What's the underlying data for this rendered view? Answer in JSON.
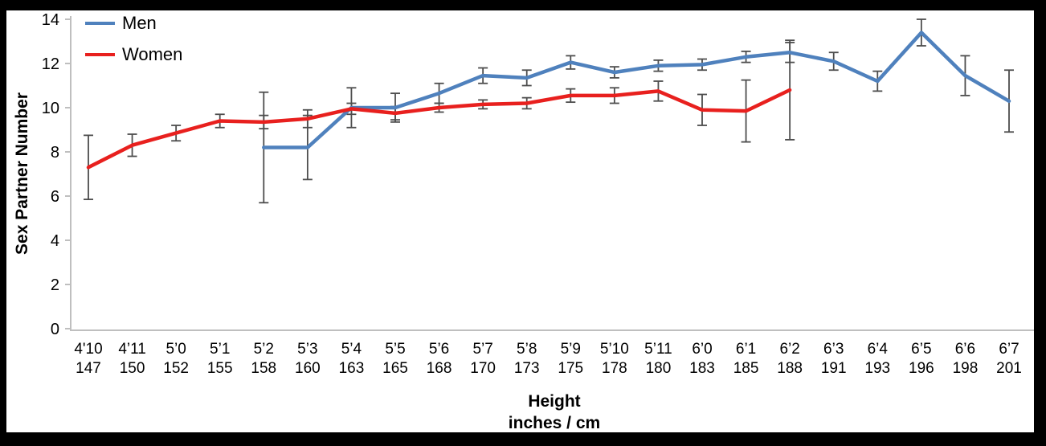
{
  "chart_data": {
    "type": "line",
    "title": "",
    "ylabel": "Sex Partner Number",
    "xlabel": "Height inches / cm",
    "xlabel_line1": "Height",
    "xlabel_line2": "inches / cm",
    "ylim": [
      0,
      14
    ],
    "y_ticks": [
      0,
      2,
      4,
      6,
      8,
      10,
      12,
      14
    ],
    "grid": false,
    "legend_position": "top-left",
    "axis_color": "#bfbfbf",
    "error_bar_color": "#4d4d4d",
    "categories_inches": [
      "4'10",
      "4’11",
      "5’0",
      "5’1",
      "5’2",
      "5’3",
      "5’4",
      "5’5",
      "5’6",
      "5’7",
      "5’8",
      "5’9",
      "5’10",
      "5’11",
      "6’0",
      "6’1",
      "6’2",
      "6’3",
      "6’4",
      "6’5",
      "6’6",
      "6’7"
    ],
    "categories_cm": [
      "147",
      "150",
      "152",
      "155",
      "158",
      "160",
      "163",
      "165",
      "168",
      "170",
      "173",
      "175",
      "178",
      "180",
      "183",
      "185",
      "188",
      "191",
      "193",
      "196",
      "198",
      "201"
    ],
    "series": [
      {
        "name": "Men",
        "color": "#4f81bd",
        "values": [
          null,
          null,
          null,
          null,
          8.2,
          8.2,
          10.0,
          10.0,
          10.65,
          11.45,
          11.35,
          12.05,
          11.6,
          11.9,
          11.95,
          12.3,
          12.5,
          12.1,
          11.2,
          13.4,
          11.45,
          10.3
        ],
        "errors": [
          null,
          null,
          null,
          null,
          2.5,
          1.45,
          0.9,
          0.65,
          0.45,
          0.35,
          0.35,
          0.3,
          0.25,
          0.25,
          0.25,
          0.25,
          0.45,
          0.4,
          0.45,
          0.6,
          0.9,
          1.4
        ]
      },
      {
        "name": "Women",
        "color": "#e8201e",
        "values": [
          7.3,
          8.3,
          8.85,
          9.4,
          9.35,
          9.5,
          9.95,
          9.75,
          10.0,
          10.15,
          10.2,
          10.55,
          10.55,
          10.75,
          9.9,
          9.85,
          10.8,
          null,
          null,
          null,
          null,
          null
        ],
        "errors": [
          1.45,
          0.5,
          0.35,
          0.3,
          0.3,
          0.4,
          0.25,
          0.3,
          0.2,
          0.2,
          0.25,
          0.3,
          0.35,
          0.45,
          0.7,
          1.4,
          2.25,
          null,
          null,
          null,
          null,
          null
        ]
      }
    ]
  }
}
